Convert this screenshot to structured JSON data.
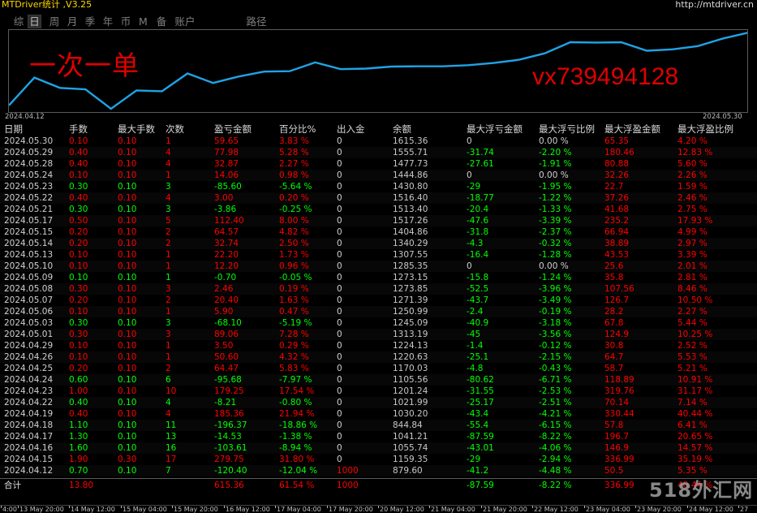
{
  "window": {
    "title": "MTDriver统计 ,V3.25",
    "url": "http://mtdriver.cn"
  },
  "tabs": [
    {
      "label": "综",
      "active": false
    },
    {
      "label": "日",
      "active": true
    },
    {
      "label": "周",
      "active": false
    },
    {
      "label": "月",
      "active": false
    },
    {
      "label": "季",
      "active": false
    },
    {
      "label": "年",
      "active": false
    },
    {
      "label": "币",
      "active": false
    },
    {
      "label": "M",
      "active": false
    },
    {
      "label": "备",
      "active": false
    },
    {
      "label": "账户",
      "active": false
    },
    {
      "label": "路径",
      "active": false
    }
  ],
  "overlay": {
    "cn_text": "一次一单",
    "vx_text": "vx739494128"
  },
  "chart": {
    "start_label": "2024.04.12",
    "end_label": "2024.05.30",
    "line_color": "#1fa3e6"
  },
  "chart_data": {
    "type": "line",
    "x": [
      "2024.04.12",
      "2024.04.15",
      "2024.04.16",
      "2024.04.17",
      "2024.04.18",
      "2024.04.19",
      "2024.04.22",
      "2024.04.23",
      "2024.04.24",
      "2024.04.25",
      "2024.04.26",
      "2024.04.29",
      "2024.05.01",
      "2024.05.03",
      "2024.05.06",
      "2024.05.07",
      "2024.05.08",
      "2024.05.09",
      "2024.05.10",
      "2024.05.13",
      "2024.05.14",
      "2024.05.15",
      "2024.05.17",
      "2024.05.21",
      "2024.05.22",
      "2024.05.23",
      "2024.05.24",
      "2024.05.28",
      "2024.05.29",
      "2024.05.30"
    ],
    "series": [
      {
        "values": [
          879.6,
          1159.35,
          1055.74,
          1041.21,
          844.84,
          1030.2,
          1021.99,
          1201.24,
          1105.56,
          1170.03,
          1220.63,
          1224.13,
          1313.19,
          1245.09,
          1250.99,
          1271.39,
          1273.85,
          1273.15,
          1285.35,
          1307.55,
          1340.29,
          1404.86,
          1517.26,
          1513.4,
          1516.4,
          1430.8,
          1444.86,
          1477.73,
          1555.71,
          1615.36
        ]
      }
    ]
  },
  "table": {
    "headers": [
      "日期",
      "手数",
      "最大手数",
      "次数",
      "盈亏金额",
      "百分比%",
      "出入金",
      "余额",
      "最大浮亏金额",
      "最大浮亏比例",
      "最大浮盈金额",
      "最大浮盈比例"
    ],
    "rows": [
      {
        "date": "2024.05.30",
        "lots": "0.10",
        "max_lots": "0.10",
        "count": "1",
        "pl": "59.65",
        "pct": "3.83 %",
        "io": "0",
        "bal": "1615.36",
        "mfl": "0",
        "mflp": "0.00 %",
        "mfp": "65.35",
        "mfpp": "4.20 %",
        "side": "red"
      },
      {
        "date": "2024.05.29",
        "lots": "0.40",
        "max_lots": "0.10",
        "count": "4",
        "pl": "77.98",
        "pct": "5.28 %",
        "io": "0",
        "bal": "1555.71",
        "mfl": "-31.74",
        "mflp": "-2.20 %",
        "mfp": "180.46",
        "mfpp": "12.83 %",
        "side": "red"
      },
      {
        "date": "2024.05.28",
        "lots": "0.40",
        "max_lots": "0.10",
        "count": "4",
        "pl": "32.87",
        "pct": "2.27 %",
        "io": "0",
        "bal": "1477.73",
        "mfl": "-27.61",
        "mflp": "-1.91 %",
        "mfp": "80.88",
        "mfpp": "5.60 %",
        "side": "red"
      },
      {
        "date": "2024.05.24",
        "lots": "0.10",
        "max_lots": "0.10",
        "count": "1",
        "pl": "14.06",
        "pct": "0.98 %",
        "io": "0",
        "bal": "1444.86",
        "mfl": "0",
        "mflp": "0.00 %",
        "mfp": "32.26",
        "mfpp": "2.26 %",
        "side": "red"
      },
      {
        "date": "2024.05.23",
        "lots": "0.30",
        "max_lots": "0.10",
        "count": "3",
        "pl": "-85.60",
        "pct": "-5.64 %",
        "io": "0",
        "bal": "1430.80",
        "mfl": "-29",
        "mflp": "-1.95 %",
        "mfp": "22.7",
        "mfpp": "1.59 %",
        "side": "green"
      },
      {
        "date": "2024.05.22",
        "lots": "0.40",
        "max_lots": "0.10",
        "count": "4",
        "pl": "3.00",
        "pct": "0.20 %",
        "io": "0",
        "bal": "1516.40",
        "mfl": "-18.77",
        "mflp": "-1.22 %",
        "mfp": "37.26",
        "mfpp": "2.46 %",
        "side": "red"
      },
      {
        "date": "2024.05.21",
        "lots": "0.30",
        "max_lots": "0.10",
        "count": "3",
        "pl": "-3.86",
        "pct": "-0.25 %",
        "io": "0",
        "bal": "1513.40",
        "mfl": "-20.4",
        "mflp": "-1.33 %",
        "mfp": "41.68",
        "mfpp": "2.75 %",
        "side": "green"
      },
      {
        "date": "2024.05.17",
        "lots": "0.50",
        "max_lots": "0.10",
        "count": "5",
        "pl": "112.40",
        "pct": "8.00 %",
        "io": "0",
        "bal": "1517.26",
        "mfl": "-47.6",
        "mflp": "-3.39 %",
        "mfp": "235.2",
        "mfpp": "17.93 %",
        "side": "red"
      },
      {
        "date": "2024.05.15",
        "lots": "0.20",
        "max_lots": "0.10",
        "count": "2",
        "pl": "64.57",
        "pct": "4.82 %",
        "io": "0",
        "bal": "1404.86",
        "mfl": "-31.8",
        "mflp": "-2.37 %",
        "mfp": "66.94",
        "mfpp": "4.99 %",
        "side": "red"
      },
      {
        "date": "2024.05.14",
        "lots": "0.20",
        "max_lots": "0.10",
        "count": "2",
        "pl": "32.74",
        "pct": "2.50 %",
        "io": "0",
        "bal": "1340.29",
        "mfl": "-4.3",
        "mflp": "-0.32 %",
        "mfp": "38.89",
        "mfpp": "2.97 %",
        "side": "red"
      },
      {
        "date": "2024.05.13",
        "lots": "0.10",
        "max_lots": "0.10",
        "count": "1",
        "pl": "22.20",
        "pct": "1.73 %",
        "io": "0",
        "bal": "1307.55",
        "mfl": "-16.4",
        "mflp": "-1.28 %",
        "mfp": "43.53",
        "mfpp": "3.39 %",
        "side": "red"
      },
      {
        "date": "2024.05.10",
        "lots": "0.10",
        "max_lots": "0.10",
        "count": "1",
        "pl": "12.20",
        "pct": "0.96 %",
        "io": "0",
        "bal": "1285.35",
        "mfl": "0",
        "mflp": "0.00 %",
        "mfp": "25.6",
        "mfpp": "2.01 %",
        "side": "red"
      },
      {
        "date": "2024.05.09",
        "lots": "0.10",
        "max_lots": "0.10",
        "count": "1",
        "pl": "-0.70",
        "pct": "-0.05 %",
        "io": "0",
        "bal": "1273.15",
        "mfl": "-15.8",
        "mflp": "-1.24 %",
        "mfp": "35.8",
        "mfpp": "2.81 %",
        "side": "green"
      },
      {
        "date": "2024.05.08",
        "lots": "0.30",
        "max_lots": "0.10",
        "count": "3",
        "pl": "2.46",
        "pct": "0.19 %",
        "io": "0",
        "bal": "1273.85",
        "mfl": "-52.5",
        "mflp": "-3.96 %",
        "mfp": "107.56",
        "mfpp": "8.46 %",
        "side": "red"
      },
      {
        "date": "2024.05.07",
        "lots": "0.20",
        "max_lots": "0.10",
        "count": "2",
        "pl": "20.40",
        "pct": "1.63 %",
        "io": "0",
        "bal": "1271.39",
        "mfl": "-43.7",
        "mflp": "-3.49 %",
        "mfp": "126.7",
        "mfpp": "10.50 %",
        "side": "red"
      },
      {
        "date": "2024.05.06",
        "lots": "0.10",
        "max_lots": "0.10",
        "count": "1",
        "pl": "5.90",
        "pct": "0.47 %",
        "io": "0",
        "bal": "1250.99",
        "mfl": "-2.4",
        "mflp": "-0.19 %",
        "mfp": "28.2",
        "mfpp": "2.27 %",
        "side": "red"
      },
      {
        "date": "2024.05.03",
        "lots": "0.30",
        "max_lots": "0.10",
        "count": "3",
        "pl": "-68.10",
        "pct": "-5.19 %",
        "io": "0",
        "bal": "1245.09",
        "mfl": "-40.9",
        "mflp": "-3.18 %",
        "mfp": "67.8",
        "mfpp": "5.44 %",
        "side": "green"
      },
      {
        "date": "2024.05.01",
        "lots": "0.30",
        "max_lots": "0.10",
        "count": "3",
        "pl": "89.06",
        "pct": "7.28 %",
        "io": "0",
        "bal": "1313.19",
        "mfl": "-45",
        "mflp": "-3.56 %",
        "mfp": "124.9",
        "mfpp": "10.25 %",
        "side": "red"
      },
      {
        "date": "2024.04.29",
        "lots": "0.10",
        "max_lots": "0.10",
        "count": "1",
        "pl": "3.50",
        "pct": "0.29 %",
        "io": "0",
        "bal": "1224.13",
        "mfl": "-1.4",
        "mflp": "-0.12 %",
        "mfp": "30.8",
        "mfpp": "2.52 %",
        "side": "red"
      },
      {
        "date": "2024.04.26",
        "lots": "0.10",
        "max_lots": "0.10",
        "count": "1",
        "pl": "50.60",
        "pct": "4.32 %",
        "io": "0",
        "bal": "1220.63",
        "mfl": "-25.1",
        "mflp": "-2.15 %",
        "mfp": "64.7",
        "mfpp": "5.53 %",
        "side": "red"
      },
      {
        "date": "2024.04.25",
        "lots": "0.20",
        "max_lots": "0.10",
        "count": "2",
        "pl": "64.47",
        "pct": "5.83 %",
        "io": "0",
        "bal": "1170.03",
        "mfl": "-4.8",
        "mflp": "-0.43 %",
        "mfp": "58.7",
        "mfpp": "5.21 %",
        "side": "red"
      },
      {
        "date": "2024.04.24",
        "lots": "0.60",
        "max_lots": "0.10",
        "count": "6",
        "pl": "-95.68",
        "pct": "-7.97 %",
        "io": "0",
        "bal": "1105.56",
        "mfl": "-80.62",
        "mflp": "-6.71 %",
        "mfp": "118.89",
        "mfpp": "10.91 %",
        "side": "green"
      },
      {
        "date": "2024.04.23",
        "lots": "1.00",
        "max_lots": "0.10",
        "count": "10",
        "pl": "179.25",
        "pct": "17.54 %",
        "io": "0",
        "bal": "1201.24",
        "mfl": "-31.55",
        "mflp": "-2.53 %",
        "mfp": "319.76",
        "mfpp": "31.17 %",
        "side": "red"
      },
      {
        "date": "2024.04.22",
        "lots": "0.40",
        "max_lots": "0.10",
        "count": "4",
        "pl": "-8.21",
        "pct": "-0.80 %",
        "io": "0",
        "bal": "1021.99",
        "mfl": "-25.17",
        "mflp": "-2.51 %",
        "mfp": "70.14",
        "mfpp": "7.14 %",
        "side": "green"
      },
      {
        "date": "2024.04.19",
        "lots": "0.40",
        "max_lots": "0.10",
        "count": "4",
        "pl": "185.36",
        "pct": "21.94 %",
        "io": "0",
        "bal": "1030.20",
        "mfl": "-43.4",
        "mflp": "-4.21 %",
        "mfp": "330.44",
        "mfpp": "40.44 %",
        "side": "red"
      },
      {
        "date": "2024.04.18",
        "lots": "1.10",
        "max_lots": "0.10",
        "count": "11",
        "pl": "-196.37",
        "pct": "-18.86 %",
        "io": "0",
        "bal": "844.84",
        "mfl": "-55.4",
        "mflp": "-6.15 %",
        "mfp": "57.8",
        "mfpp": "6.41 %",
        "side": "green"
      },
      {
        "date": "2024.04.17",
        "lots": "1.30",
        "max_lots": "0.10",
        "count": "13",
        "pl": "-14.53",
        "pct": "-1.38 %",
        "io": "0",
        "bal": "1041.21",
        "mfl": "-87.59",
        "mflp": "-8.22 %",
        "mfp": "196.7",
        "mfpp": "20.65 %",
        "side": "green"
      },
      {
        "date": "2024.04.16",
        "lots": "1.60",
        "max_lots": "0.10",
        "count": "16",
        "pl": "-103.61",
        "pct": "-8.94 %",
        "io": "0",
        "bal": "1055.74",
        "mfl": "-43.01",
        "mflp": "-4.06 %",
        "mfp": "146.9",
        "mfpp": "14.57 %",
        "side": "green"
      },
      {
        "date": "2024.04.15",
        "lots": "1.90",
        "max_lots": "0.30",
        "count": "17",
        "pl": "279.75",
        "pct": "31.80 %",
        "io": "0",
        "bal": "1159.35",
        "mfl": "-29",
        "mflp": "-2.94 %",
        "mfp": "336.99",
        "mfpp": "35.19 %",
        "side": "red"
      },
      {
        "date": "2024.04.12",
        "lots": "0.70",
        "max_lots": "0.10",
        "count": "7",
        "pl": "-120.40",
        "pct": "-12.04 %",
        "io": "1000",
        "bal": "879.60",
        "mfl": "-41.2",
        "mflp": "-4.48 %",
        "mfp": "50.5",
        "mfpp": "5.35 %",
        "side": "green"
      }
    ],
    "total": {
      "label": "合计",
      "lots": "13.80",
      "pl": "615.36",
      "pct": "61.54 %",
      "io": "1000",
      "mfl": "-87.59",
      "mflp": "-8.22 %",
      "mfp": "336.99",
      "mfpp": "40.44 %"
    }
  },
  "bottom_axis": [
    "4:00",
    "13 May 20:00",
    "14 May 12:00",
    "15 May 04:00",
    "15 May 20:00",
    "16 May 12:00",
    "17 May 04:00",
    "17 May 20:00",
    "20 May 12:00",
    "21 May 04:00",
    "21 May 20:00",
    "22 May 12:00",
    "23 May 04:00",
    "23 May 20:00",
    "24 May 12:00",
    "27"
  ],
  "logo_text": "518外汇网"
}
